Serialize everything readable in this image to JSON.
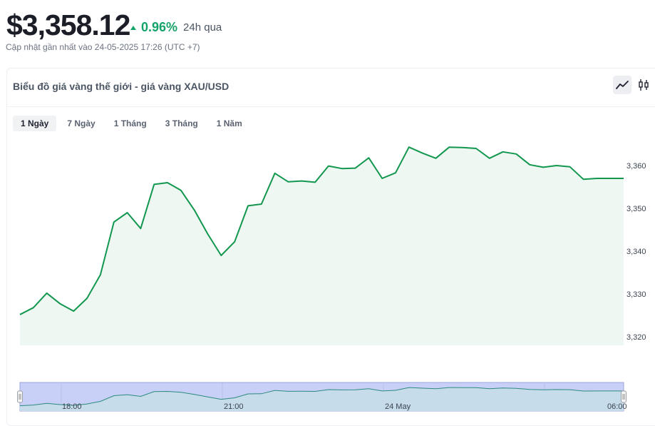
{
  "header": {
    "price": "$3,358.12",
    "change_pct": "0.96%",
    "change_period": "24h qua",
    "updated": "Cập nhật gần nhất vào 24-05-2025 17:26 (UTC +7)"
  },
  "panel": {
    "title": "Biểu đồ giá vàng thế giới - giá vàng XAU/USD",
    "view_modes": [
      {
        "icon": "line-chart-icon",
        "active": true
      },
      {
        "icon": "candlestick-icon",
        "active": false
      }
    ]
  },
  "tabs": [
    {
      "label": "1 Ngày",
      "active": true
    },
    {
      "label": "7 Ngày",
      "active": false
    },
    {
      "label": "1 Tháng",
      "active": false
    },
    {
      "label": "3 Tháng",
      "active": false
    },
    {
      "label": "1 Năm",
      "active": false
    }
  ],
  "colors": {
    "line": "#12974f",
    "area": "#eef7f1",
    "positive": "#15a36a",
    "navigator_bg": "#c9d0f7"
  },
  "chart_data": {
    "type": "area",
    "y_ticks": [
      "3,320",
      "3,330",
      "3,340",
      "3,350",
      "3,360"
    ],
    "ylim": [
      3318,
      3366
    ],
    "values": [
      3325.2,
      3326.8,
      3330.2,
      3327.7,
      3326.0,
      3329.0,
      3334.5,
      3346.8,
      3349.0,
      3345.3,
      3355.6,
      3356.0,
      3354.2,
      3349.6,
      3344.0,
      3339.0,
      3342.2,
      3350.6,
      3351.0,
      3358.2,
      3356.2,
      3356.4,
      3356.1,
      3359.9,
      3359.3,
      3359.4,
      3361.8,
      3357.0,
      3358.3,
      3364.3,
      3362.9,
      3361.7,
      3364.3,
      3364.2,
      3364.0,
      3361.7,
      3363.2,
      3362.7,
      3360.2,
      3359.6,
      3360.0,
      3359.7,
      3356.8,
      3357.0,
      3357.0,
      3357.0
    ],
    "navigator_labels": [
      "18:00",
      "21:00",
      "24 May",
      "06:00"
    ]
  }
}
